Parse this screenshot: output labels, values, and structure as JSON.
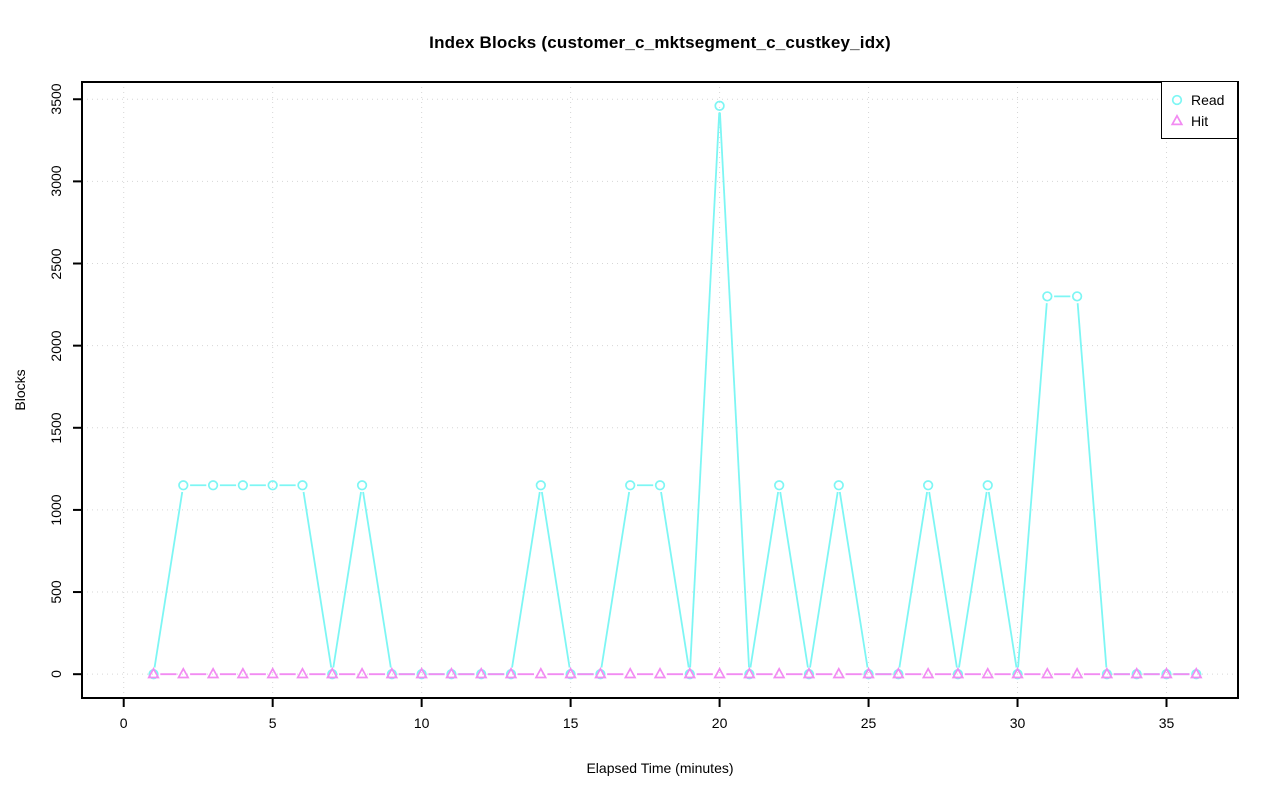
{
  "chart_data": {
    "type": "line",
    "title": "Index Blocks (customer_c_mktsegment_c_custkey_idx)",
    "xlabel": "Elapsed Time (minutes)",
    "ylabel": "Blocks",
    "x": [
      1,
      2,
      3,
      4,
      5,
      6,
      7,
      8,
      9,
      10,
      11,
      12,
      13,
      14,
      15,
      16,
      17,
      18,
      19,
      20,
      21,
      22,
      23,
      24,
      25,
      26,
      27,
      28,
      29,
      30,
      31,
      32,
      33,
      34,
      35,
      36
    ],
    "series": [
      {
        "name": "Read",
        "marker": "circle",
        "color": "#7df6f4",
        "values": [
          0,
          1150,
          1150,
          1150,
          1150,
          1150,
          0,
          1150,
          0,
          0,
          0,
          0,
          0,
          1150,
          0,
          0,
          1150,
          1150,
          0,
          3460,
          0,
          1150,
          0,
          1150,
          0,
          0,
          1150,
          0,
          1150,
          0,
          2300,
          2300,
          0,
          0,
          0,
          0
        ]
      },
      {
        "name": "Hit",
        "marker": "triangle",
        "color": "#f28bf2",
        "values": [
          0,
          0,
          0,
          0,
          0,
          0,
          0,
          0,
          0,
          0,
          0,
          0,
          0,
          0,
          0,
          0,
          0,
          0,
          0,
          0,
          0,
          0,
          0,
          0,
          0,
          0,
          0,
          0,
          0,
          0,
          0,
          0,
          0,
          0,
          0,
          0
        ]
      }
    ],
    "xticks": [
      0,
      5,
      10,
      15,
      20,
      25,
      30,
      35
    ],
    "yticks": [
      0,
      500,
      1000,
      1500,
      2000,
      2500,
      3000,
      3500
    ],
    "xlim": [
      -1.4,
      37.4
    ],
    "ylim": [
      -145,
      3605
    ],
    "grid": true,
    "grid_color": "#d6d6d6",
    "frame_color": "#000000",
    "legend_position": "top-right"
  }
}
